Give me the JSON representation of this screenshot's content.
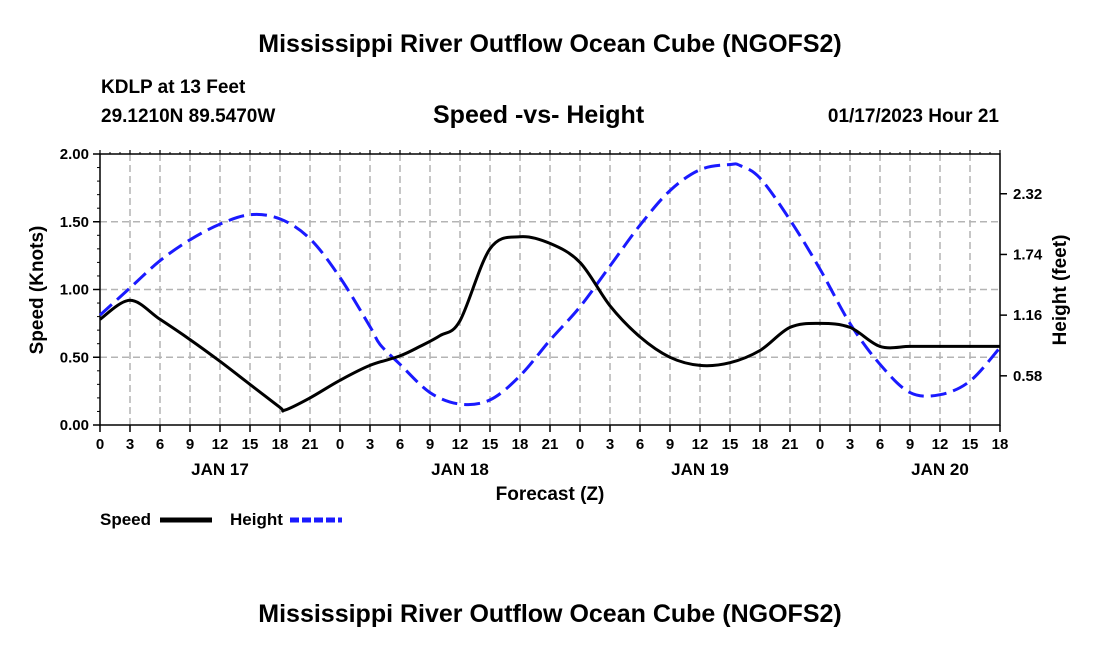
{
  "main_title": "Mississippi River Outflow Ocean Cube (NGOFS2)",
  "station": {
    "name": "KDLP at 13 Feet",
    "coords": "29.1210N  89.5470W"
  },
  "timestamp": "01/17/2023 Hour 21",
  "legend": {
    "speed_label": "Speed",
    "height_label": "Height"
  },
  "footer_title": "Mississippi River Outflow Ocean Cube (NGOFS2)",
  "colors": {
    "speed": "#000000",
    "height": "#1a1aff",
    "grid": "#b4b4b4"
  },
  "chart_data": {
    "type": "line",
    "title": "Speed -vs- Height",
    "xlabel": "Forecast (Z)",
    "ylabel": "Speed (Knots)",
    "y2label": "Height (feet)",
    "x_unit": "hours since Jan 17 00Z",
    "xlim": [
      -12,
      78
    ],
    "x_ticks": [
      -12,
      -9,
      -6,
      -3,
      0,
      3,
      6,
      9,
      12,
      15,
      18,
      21,
      24,
      27,
      30,
      33,
      36,
      39,
      42,
      45,
      48,
      51,
      54,
      57,
      60,
      63,
      66,
      69,
      72,
      75,
      78
    ],
    "x_tick_labels": [
      "0",
      "3",
      "6",
      "9",
      "12",
      "15",
      "18",
      "21",
      "0",
      "3",
      "6",
      "9",
      "12",
      "15",
      "18",
      "21",
      "0",
      "3",
      "6",
      "9",
      "12",
      "15",
      "18",
      "21",
      "0",
      "3",
      "6",
      "9",
      "12",
      "15",
      "18"
    ],
    "x_day_labels": [
      {
        "label": "JAN 17",
        "x": 0
      },
      {
        "label": "JAN 18",
        "x": 24
      },
      {
        "label": "JAN 19",
        "x": 48
      },
      {
        "label": "JAN 20",
        "x": 72
      }
    ],
    "ylim": [
      0,
      2.0
    ],
    "y_ticks": [
      0,
      0.5,
      1.0,
      1.5,
      2.0
    ],
    "y_tick_labels": [
      "0.00",
      "0.50",
      "1.00",
      "1.50",
      "2.00"
    ],
    "y2lim": [
      0.11,
      2.7
    ],
    "y2_ticks": [
      0.58,
      1.16,
      1.74,
      2.32
    ],
    "y2_tick_labels": [
      "0.58",
      "1.16",
      "1.74",
      "2.32"
    ],
    "series": [
      {
        "name": "Speed",
        "axis": "left",
        "style": "solid",
        "x": [
          -12,
          -9,
          -6,
          -3,
          0,
          3,
          6,
          6.5,
          9,
          12,
          15,
          18,
          20,
          22,
          24,
          27,
          30,
          33,
          36,
          39,
          42,
          45,
          48,
          51,
          54,
          57,
          60,
          63,
          66,
          69,
          72,
          75,
          78
        ],
        "values": [
          0.78,
          0.92,
          0.78,
          0.63,
          0.47,
          0.3,
          0.13,
          0.11,
          0.2,
          0.33,
          0.44,
          0.51,
          0.58,
          0.66,
          0.77,
          1.3,
          1.39,
          1.34,
          1.2,
          0.88,
          0.65,
          0.5,
          0.44,
          0.46,
          0.55,
          0.72,
          0.75,
          0.72,
          0.58,
          0.58,
          0.58,
          0.58,
          0.58
        ]
      },
      {
        "name": "Height",
        "axis": "right",
        "style": "dashed",
        "x": [
          -12,
          -9,
          -6,
          -3,
          0,
          3,
          6,
          9,
          12,
          15,
          16,
          18,
          21,
          24,
          27,
          30,
          33,
          36,
          39,
          42,
          45,
          48,
          51,
          52,
          54,
          57,
          60,
          63,
          66,
          69,
          72,
          75,
          78
        ],
        "values": [
          1.16,
          1.42,
          1.68,
          1.88,
          2.03,
          2.12,
          2.08,
          1.89,
          1.52,
          1.05,
          0.88,
          0.69,
          0.42,
          0.31,
          0.35,
          0.58,
          0.92,
          1.24,
          1.63,
          2.02,
          2.35,
          2.55,
          2.6,
          2.59,
          2.47,
          2.07,
          1.6,
          1.08,
          0.69,
          0.42,
          0.4,
          0.53,
          0.85
        ]
      }
    ]
  }
}
